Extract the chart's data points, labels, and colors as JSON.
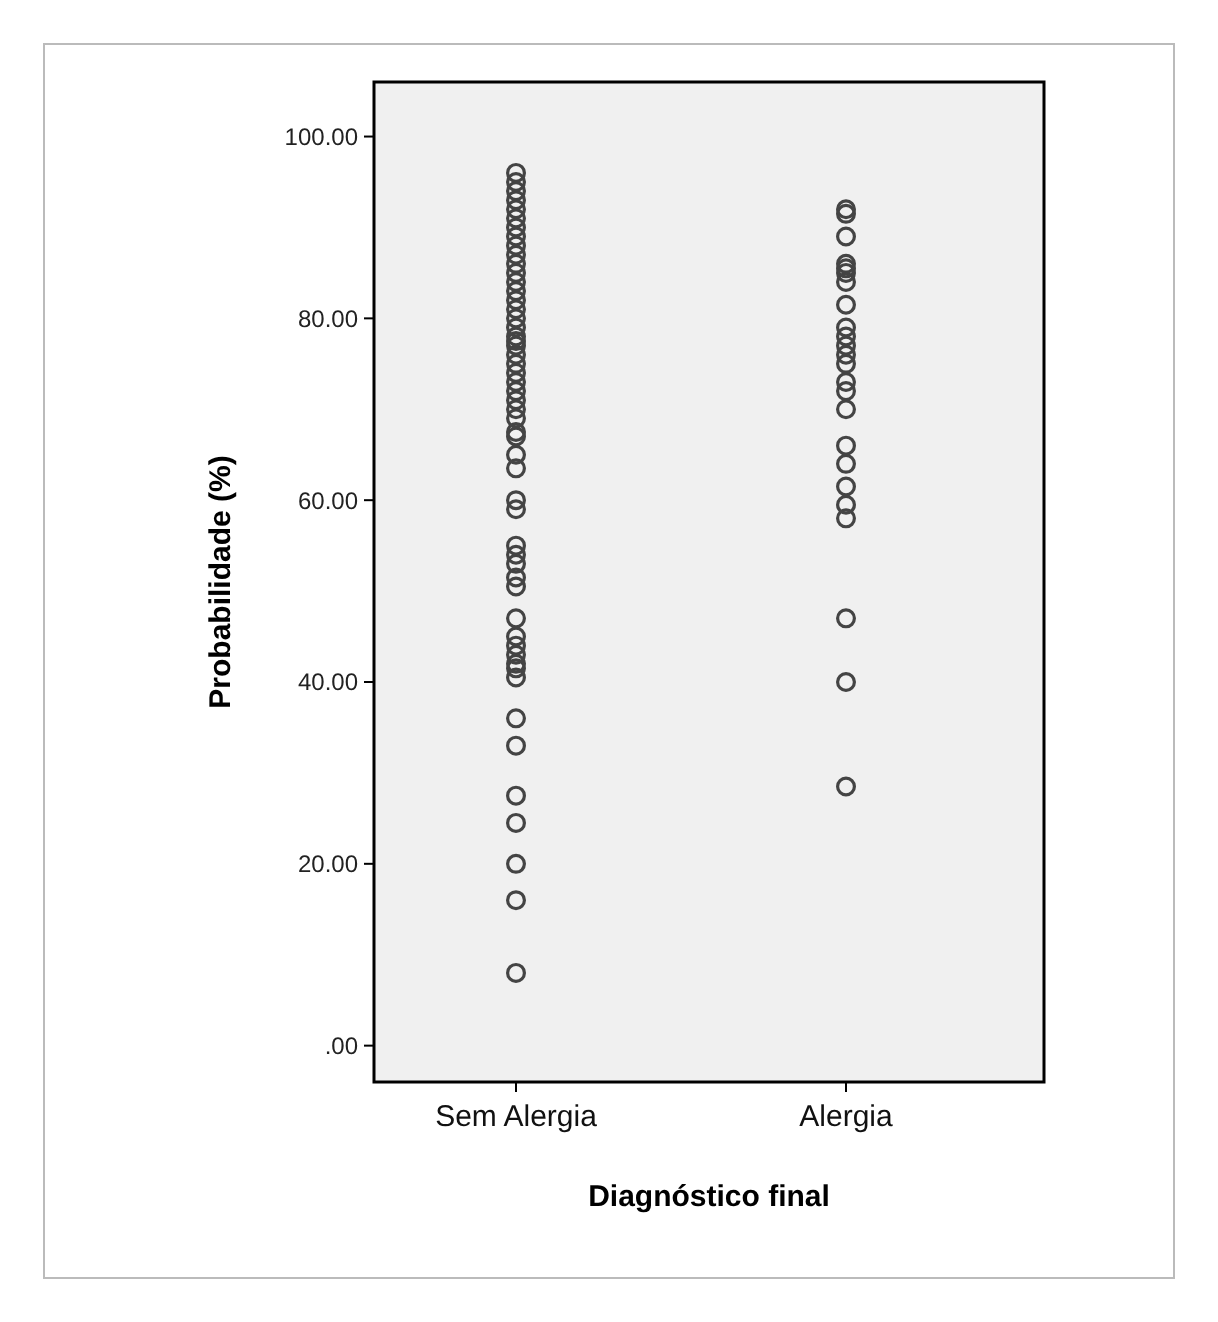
{
  "chart_data": {
    "type": "scatter",
    "xlabel": "Diagnóstico final",
    "ylabel": "Probabilidade (%)",
    "categories": [
      "Sem Alergia",
      "Alergia"
    ],
    "ylim": [
      -4,
      106
    ],
    "yticks": [
      {
        "value": 0,
        "label": ".00"
      },
      {
        "value": 20,
        "label": "20.00"
      },
      {
        "value": 40,
        "label": "40.00"
      },
      {
        "value": 60,
        "label": "60.00"
      },
      {
        "value": 80,
        "label": "80.00"
      },
      {
        "value": 100,
        "label": "100.00"
      }
    ],
    "grid": false,
    "marker": "circle",
    "series": [
      {
        "color": "#444444",
        "x": [
          "Sem Alergia",
          "Sem Alergia",
          "Sem Alergia",
          "Sem Alergia",
          "Sem Alergia",
          "Sem Alergia",
          "Sem Alergia",
          "Sem Alergia",
          "Sem Alergia",
          "Sem Alergia",
          "Sem Alergia",
          "Sem Alergia",
          "Sem Alergia",
          "Sem Alergia",
          "Sem Alergia",
          "Sem Alergia",
          "Sem Alergia",
          "Sem Alergia",
          "Sem Alergia",
          "Sem Alergia",
          "Sem Alergia",
          "Sem Alergia",
          "Sem Alergia",
          "Sem Alergia",
          "Sem Alergia",
          "Sem Alergia",
          "Sem Alergia",
          "Sem Alergia",
          "Sem Alergia",
          "Sem Alergia",
          "Sem Alergia",
          "Sem Alergia",
          "Sem Alergia",
          "Sem Alergia",
          "Sem Alergia",
          "Sem Alergia",
          "Sem Alergia",
          "Sem Alergia",
          "Sem Alergia",
          "Sem Alergia",
          "Sem Alergia",
          "Sem Alergia",
          "Sem Alergia",
          "Sem Alergia",
          "Sem Alergia",
          "Sem Alergia",
          "Sem Alergia",
          "Sem Alergia",
          "Sem Alergia",
          "Sem Alergia",
          "Sem Alergia",
          "Sem Alergia",
          "Sem Alergia",
          "Sem Alergia",
          "Alergia",
          "Alergia",
          "Alergia",
          "Alergia",
          "Alergia",
          "Alergia",
          "Alergia",
          "Alergia",
          "Alergia",
          "Alergia",
          "Alergia",
          "Alergia",
          "Alergia",
          "Alergia",
          "Alergia",
          "Alergia",
          "Alergia",
          "Alergia",
          "Alergia",
          "Alergia",
          "Alergia",
          "Alergia",
          "Alergia",
          "Alergia"
        ],
        "values": [
          8,
          16,
          20,
          24.5,
          27.5,
          33,
          36,
          40.5,
          41.5,
          42,
          43,
          44,
          45,
          47,
          50.5,
          51.5,
          53,
          54,
          55,
          59,
          60,
          63.5,
          65,
          67,
          67.5,
          69,
          70,
          71,
          72,
          73,
          74,
          75,
          76,
          77,
          77.5,
          78,
          79,
          80,
          81,
          82,
          83,
          84,
          85,
          86,
          87,
          88,
          89,
          90,
          91,
          92,
          93,
          94,
          95,
          96,
          28.5,
          40,
          47,
          58,
          59.5,
          61.5,
          64,
          66,
          70,
          72,
          73,
          75,
          76,
          77,
          78,
          79,
          81.5,
          84,
          85,
          85.5,
          86,
          89,
          91.5,
          92
        ]
      }
    ]
  }
}
